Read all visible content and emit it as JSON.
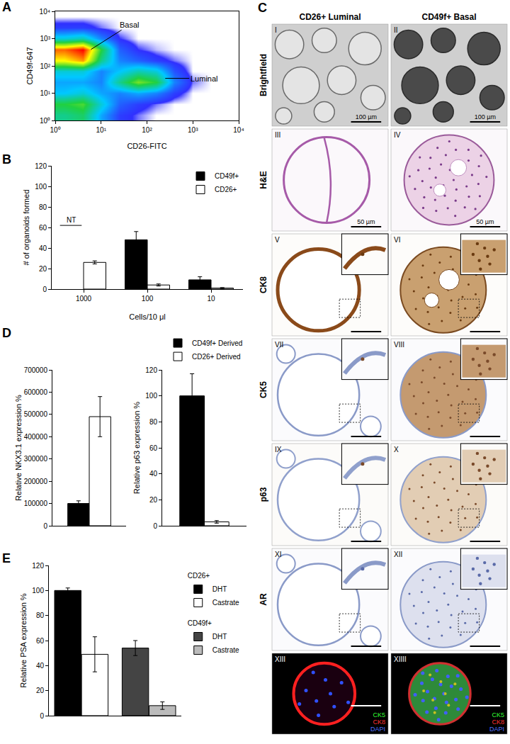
{
  "chart_data": [
    {
      "title": "A",
      "type": "heatmap",
      "x_label": "CD26-FITC",
      "y_label": "CD49f-647",
      "log": true,
      "x": [
        1,
        2.512,
        6.31,
        15.85,
        39.81,
        100,
        251.2,
        631,
        1585,
        3981,
        10000
      ],
      "y": [
        1,
        2.512,
        6.31,
        15.85,
        39.81,
        100,
        251.2,
        631,
        1585,
        3981,
        10000
      ],
      "cells": [
        [
          40,
          45,
          20,
          5,
          2,
          0,
          0,
          0,
          0,
          0
        ],
        [
          50,
          55,
          30,
          10,
          5,
          2,
          0,
          0,
          0,
          0
        ],
        [
          25,
          30,
          20,
          15,
          20,
          15,
          5,
          0,
          0,
          0
        ],
        [
          20,
          20,
          15,
          40,
          60,
          50,
          15,
          2,
          0,
          0
        ],
        [
          30,
          30,
          15,
          25,
          35,
          30,
          8,
          0,
          0,
          0
        ],
        [
          75,
          85,
          40,
          15,
          10,
          5,
          2,
          0,
          0,
          0
        ],
        [
          90,
          100,
          50,
          10,
          3,
          1,
          0,
          0,
          0,
          0
        ],
        [
          30,
          35,
          15,
          3,
          0,
          0,
          0,
          0,
          0,
          0
        ],
        [
          5,
          5,
          2,
          0,
          0,
          0,
          0,
          0,
          0,
          0
        ],
        [
          0,
          0,
          0,
          0,
          0,
          0,
          0,
          0,
          0,
          0
        ]
      ],
      "xlim": [
        1,
        10000
      ],
      "ylim": [
        1,
        10000
      ],
      "xticks": [
        {
          "value": 1,
          "label": "10⁰"
        },
        {
          "value": 10,
          "label": "10¹"
        },
        {
          "value": 100,
          "label": "10²"
        },
        {
          "value": 1000,
          "label": "10³"
        },
        {
          "value": 10000,
          "label": "10⁴"
        }
      ],
      "yticks": [
        {
          "value": 1,
          "label": "10⁰"
        },
        {
          "value": 10,
          "label": "10¹"
        },
        {
          "value": 100,
          "label": "10²"
        },
        {
          "value": 1000,
          "label": "10³"
        },
        {
          "value": 10000,
          "label": "10⁴"
        }
      ],
      "annotations": [
        {
          "text": "Basal",
          "x": 6,
          "y": 400
        },
        {
          "text": "Luminal",
          "x": 250,
          "y": 35
        }
      ]
    },
    {
      "title": "B",
      "type": "bar",
      "categories": [
        "1000",
        "100",
        "10"
      ],
      "x_label": "Cells/10 μl",
      "y_label": "# of organoids formed",
      "ylim": [
        0,
        120
      ],
      "yticks": [
        0,
        20,
        40,
        60,
        80,
        100,
        120
      ],
      "legend": "top right",
      "series": [
        {
          "name": "CD49f+",
          "color": "#000000",
          "values": [
            null,
            48,
            9
          ],
          "error": [
            null,
            8,
            3
          ]
        },
        {
          "name": "CD26+",
          "color": "#ffffff",
          "values": [
            26,
            4,
            1
          ],
          "error": [
            1.5,
            1,
            0.5
          ]
        }
      ],
      "annotations": [
        {
          "text": "NT",
          "x": "1000",
          "y": 62
        }
      ]
    },
    {
      "title": "D",
      "type": "bar",
      "categories": [
        null
      ],
      "y_label": "Relative NKX3.1 expression %",
      "ylim": [
        0,
        700000
      ],
      "yticks": [
        0,
        100000,
        200000,
        300000,
        400000,
        500000,
        600000,
        700000
      ],
      "tick_labels": "y",
      "series": [
        {
          "name": "CD49f+ Derived",
          "color": "#000000",
          "values": [
            100000
          ],
          "error": [
            12000
          ]
        },
        {
          "name": "CD26+ Derived",
          "color": "#ffffff",
          "values": [
            490000
          ],
          "error": [
            90000
          ]
        }
      ]
    },
    {
      "type": "bar",
      "categories": [
        null
      ],
      "y_label": "Relative p63 expression %",
      "ylim": [
        0,
        120
      ],
      "yticks": [
        0,
        20,
        40,
        60,
        80,
        100,
        120
      ],
      "tick_labels": "y",
      "legend": "top right",
      "series": [
        {
          "name": "CD49f+ Derived",
          "color": "#000000",
          "values": [
            100
          ],
          "error": [
            17
          ]
        },
        {
          "name": "CD26+ Derived",
          "color": "#ffffff",
          "values": [
            3
          ],
          "error": [
            1
          ]
        }
      ]
    },
    {
      "title": "E",
      "type": "bar",
      "categories": [
        null,
        null,
        null,
        null
      ],
      "y_label": "Relative PSA expression %",
      "ylim": [
        0,
        120
      ],
      "yticks": [
        0,
        20,
        40,
        60,
        80,
        100,
        120
      ],
      "tick_labels": "y",
      "legend": "right",
      "series": [
        {
          "name": "DHT",
          "legend_group": "CD26+",
          "color": "#000000",
          "values": [
            100,
            null,
            null,
            null
          ],
          "error": [
            2,
            null,
            null,
            null
          ]
        },
        {
          "name": "Castrate",
          "legend_group": "CD26+",
          "color": "#ffffff",
          "values": [
            null,
            49,
            null,
            null
          ],
          "error": [
            null,
            14,
            null,
            null
          ]
        },
        {
          "name": "DHT",
          "legend_group": "CD49f+",
          "color": "#444444",
          "values": [
            null,
            null,
            54,
            null
          ],
          "error": [
            null,
            null,
            6,
            null
          ]
        },
        {
          "name": "Castrate",
          "legend_group": "CD49f+",
          "color": "#bbbbbb",
          "values": [
            null,
            null,
            null,
            8
          ],
          "error": [
            null,
            null,
            null,
            3
          ]
        }
      ]
    }
  ],
  "image_panel": {
    "title": "C",
    "columns": [
      "CD26+ Luminal",
      "CD49f+ Basal"
    ],
    "rows": [
      "Brightfield",
      "H&E",
      "CK8",
      "CK5",
      "p63",
      "AR",
      null
    ],
    "panels": [
      [
        "I",
        "II"
      ],
      [
        "III",
        "IV"
      ],
      [
        "V",
        "VI"
      ],
      [
        "VII",
        "VIII"
      ],
      [
        "IX",
        "X"
      ],
      [
        "XI",
        "XII"
      ],
      [
        "XIII",
        "XIIII"
      ]
    ],
    "scale_bars": [
      [
        "100 µm",
        "100 µm"
      ],
      [
        "50 µm",
        "50 µm"
      ],
      [
        null,
        null
      ],
      [
        null,
        null
      ],
      [
        null,
        null
      ],
      [
        null,
        null
      ],
      [
        null,
        null
      ]
    ],
    "fluorescence_legend": [
      {
        "name": "CK5",
        "color": "#33ff33"
      },
      {
        "name": "CK8",
        "color": "#ff3333"
      },
      {
        "name": "DAPI",
        "color": "#5070ff"
      }
    ]
  }
}
